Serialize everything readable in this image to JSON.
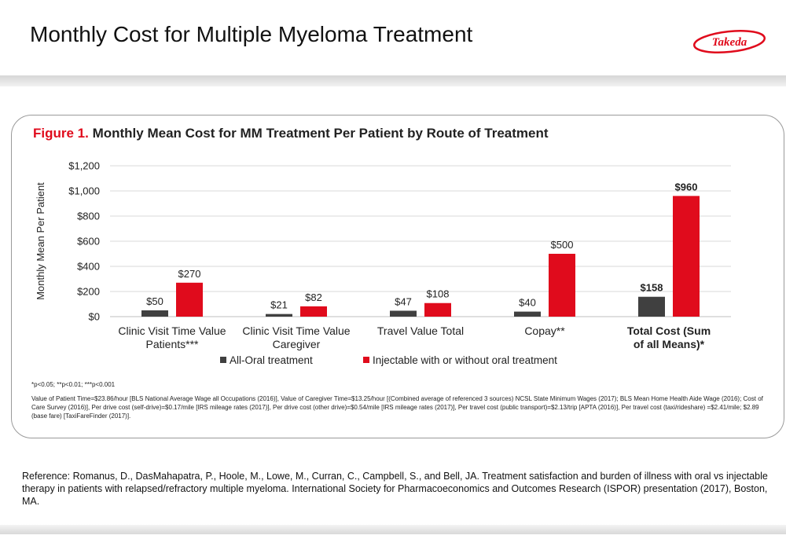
{
  "slide": {
    "title": "Monthly Cost for Multiple Myeloma Treatment",
    "logo_text": "Takeda"
  },
  "figure": {
    "label": "Figure 1.",
    "caption": " Monthly Mean Cost for MM Treatment Per Patient by Route of Treatment",
    "significance_note": "*p<0.05; **p<0.01; ***p<0.001",
    "methods_note": "Value of Patient Time=$23.86/hour [BLS National Average Wage all Occupations (2016)], Value of Caregiver Time=$13.25/hour [(Combined average of referenced 3 sources) NCSL State Minimum Wages (2017); BLS Mean Home Health Aide Wage (2016); Cost of Care Survey (2016)], Per drive cost (self-drive)=$0.17/mile [IRS mileage rates (2017)], Per drive cost (other drive)=$0.54/mile [IRS mileage rates (2017)], Per travel cost (public transport)=$2.13/trip [APTA (2016)], Per travel cost (taxi/rideshare) =$2.41/mile; $2.89 (base fare) [TaxiFareFinder (2017)]."
  },
  "reference": "Reference: Romanus, D.,  DasMahapatra, P., Hoole, M., Lowe, M., Curran, C., Campbell, S., and Bell, JA. Treatment satisfaction and burden of illness with oral vs injectable therapy in patients with relapsed/refractory multiple myeloma. International Society for Pharmacoeconomics and Outcomes Research (ISPOR) presentation (2017), Boston, MA.",
  "colors": {
    "oral": "#404040",
    "injectable": "#e00b1c",
    "accent_red": "#e00b1c",
    "grid": "#d9d9d9"
  },
  "chart_data": {
    "type": "bar",
    "ylabel": "Monthly Mean Per Patient",
    "xlabel": "",
    "ylim": [
      0,
      1200
    ],
    "yticks": [
      0,
      200,
      400,
      600,
      800,
      1000,
      1200
    ],
    "ytick_labels": [
      "$0",
      "$200",
      "$400",
      "$600",
      "$800",
      "$1,000",
      "$1,200"
    ],
    "grid": true,
    "categories": [
      "Clinic Visit Time Value Patients***",
      "Clinic Visit Time Value Caregiver",
      "Travel Value Total",
      "Copay**",
      "Total Cost (Sum of all Means)*"
    ],
    "category_label_lines": [
      [
        "Clinic Visit Time Value",
        "Patients***"
      ],
      [
        "Clinic Visit Time Value",
        "Caregiver"
      ],
      [
        "Travel Value Total"
      ],
      [
        "Copay**"
      ],
      [
        "Total Cost (Sum",
        "of all Means)*"
      ]
    ],
    "bold_categories": [
      false,
      false,
      false,
      false,
      true
    ],
    "series": [
      {
        "name": "All-Oral treatment",
        "values": [
          50,
          21,
          47,
          40,
          158
        ],
        "labels": [
          "$50",
          "$21",
          "$47",
          "$40",
          "$158"
        ]
      },
      {
        "name": "Injectable with or without oral treatment",
        "values": [
          270,
          82,
          108,
          500,
          960
        ],
        "labels": [
          "$270",
          "$82",
          "$108",
          "$500",
          "$960"
        ]
      }
    ],
    "legend_position": "bottom"
  }
}
